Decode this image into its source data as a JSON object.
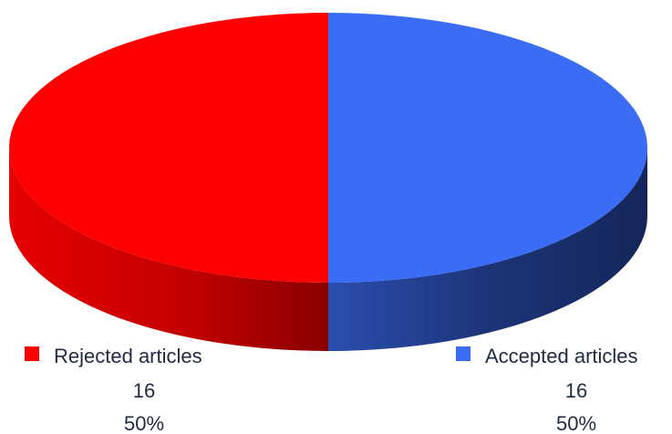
{
  "chart_data": {
    "type": "pie",
    "style": "3d",
    "slices": [
      {
        "label": "Rejected articles",
        "value": 16,
        "percent": "50%",
        "color": "#ff0000",
        "side_color": "#b00000"
      },
      {
        "label": "Accepted articles",
        "value": 16,
        "percent": "50%",
        "color": "#3b6cf6",
        "side_color": "#1a2f6e"
      }
    ]
  }
}
